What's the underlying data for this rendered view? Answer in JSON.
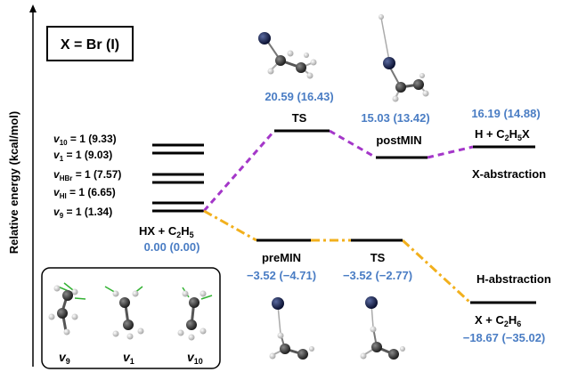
{
  "title": "X = Br (I)",
  "y_axis_label": "Relative energy (kcal/mol)",
  "colors": {
    "x_path": "#a437c9",
    "h_path": "#f2b01d",
    "energy_text": "#4a7dc4",
    "atom_carbon": "#2f2f2f",
    "atom_hydrogen": "#d9d9d9",
    "atom_halogen": "#14213d",
    "vibration_arrow": "#33b233"
  },
  "reactant_levels": [
    {
      "v": "10",
      "value": "1 (9.33)"
    },
    {
      "v": "1",
      "value": "1 (9.03)"
    },
    {
      "v": "HBr",
      "value": "1 (7.57)"
    },
    {
      "v": "HI",
      "value": "1 (6.65)"
    },
    {
      "v": "9",
      "value": "1 (1.34)"
    }
  ],
  "reactants": {
    "name": "HX + C",
    "sub": "2",
    "name2": "H",
    "sub2": "5",
    "energy": "0.00 (0.00)"
  },
  "x_path": {
    "ts": {
      "label": "TS",
      "energy": "20.59 (16.43)"
    },
    "postmin": {
      "label": "postMIN",
      "energy": "15.03 (13.42)"
    },
    "product": {
      "pre": "H + C",
      "sub1": "2",
      "mid": "H",
      "sub2": "5",
      "post": "X",
      "energy": "16.19 (14.88)"
    },
    "name": "X-abstraction"
  },
  "h_path": {
    "premin": {
      "label": "preMIN",
      "energy": "−3.52 (−4.71)"
    },
    "ts": {
      "label": "TS",
      "energy": "−3.52 (−2.77)"
    },
    "product": {
      "pre": "X + C",
      "sub1": "2",
      "mid": "H",
      "sub2": "6",
      "energy": "−18.67 (−35.02)"
    },
    "name": "H-abstraction"
  },
  "modes": [
    {
      "v": "v",
      "sub": "9"
    },
    {
      "v": "v",
      "sub": "1"
    },
    {
      "v": "v",
      "sub": "10"
    }
  ]
}
